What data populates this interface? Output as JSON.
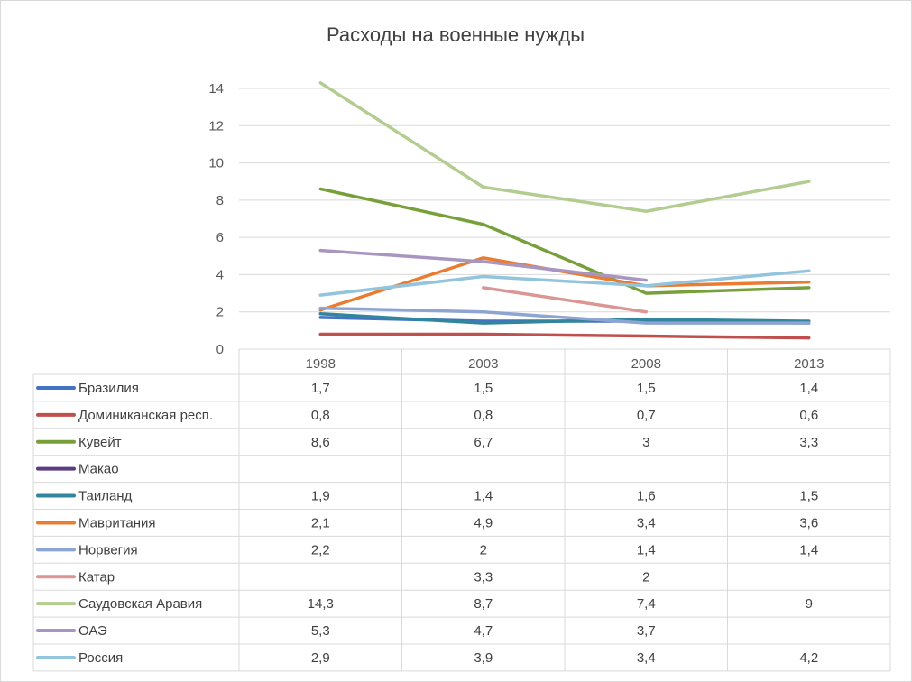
{
  "chart_data": {
    "type": "line",
    "title": "Расходы на военные нужды",
    "categories": [
      "1998",
      "2003",
      "2008",
      "2013"
    ],
    "ylim": [
      0,
      14
    ],
    "yticks": [
      0,
      2,
      4,
      6,
      8,
      10,
      12,
      14
    ],
    "grid": true,
    "legend": "data-table",
    "series": [
      {
        "name": "Бразилия",
        "color": "#4472c4",
        "values": [
          1.7,
          1.5,
          1.5,
          1.4
        ],
        "labels": [
          "1,7",
          "1,5",
          "1,5",
          "1,4"
        ]
      },
      {
        "name": "Доминиканская респ.",
        "color": "#c0504d",
        "values": [
          0.8,
          0.8,
          0.7,
          0.6
        ],
        "labels": [
          "0,8",
          "0,8",
          "0,7",
          "0,6"
        ]
      },
      {
        "name": "Кувейт",
        "color": "#77a03b",
        "values": [
          8.6,
          6.7,
          3,
          3.3
        ],
        "labels": [
          "8,6",
          "6,7",
          "3",
          "3,3"
        ]
      },
      {
        "name": "Макао",
        "color": "#5e3c82",
        "values": [
          null,
          null,
          null,
          null
        ],
        "labels": [
          "",
          "",
          "",
          ""
        ]
      },
      {
        "name": "Таиланд",
        "color": "#31859c",
        "values": [
          1.9,
          1.4,
          1.6,
          1.5
        ],
        "labels": [
          "1,9",
          "1,4",
          "1,6",
          "1,5"
        ]
      },
      {
        "name": "Мавритания",
        "color": "#e97c30",
        "values": [
          2.1,
          4.9,
          3.4,
          3.6
        ],
        "labels": [
          "2,1",
          "4,9",
          "3,4",
          "3,6"
        ]
      },
      {
        "name": "Норвегия",
        "color": "#8ea4d2",
        "values": [
          2.2,
          2,
          1.4,
          1.4
        ],
        "labels": [
          "2,2",
          "2",
          "1,4",
          "1,4"
        ]
      },
      {
        "name": "Катар",
        "color": "#d99694",
        "values": [
          null,
          3.3,
          2,
          null
        ],
        "labels": [
          "",
          "3,3",
          "2",
          ""
        ]
      },
      {
        "name": "Саудовская Аравия",
        "color": "#b3cc8f",
        "values": [
          14.3,
          8.7,
          7.4,
          9
        ],
        "labels": [
          "14,3",
          "8,7",
          "7,4",
          "9"
        ]
      },
      {
        "name": "ОАЭ",
        "color": "#a895c0",
        "values": [
          5.3,
          4.7,
          3.7,
          null
        ],
        "labels": [
          "5,3",
          "4,7",
          "3,7",
          ""
        ]
      },
      {
        "name": "Россия",
        "color": "#93c4de",
        "values": [
          2.9,
          3.9,
          3.4,
          4.2
        ],
        "labels": [
          "2,9",
          "3,9",
          "3,4",
          "4,2"
        ]
      }
    ]
  }
}
